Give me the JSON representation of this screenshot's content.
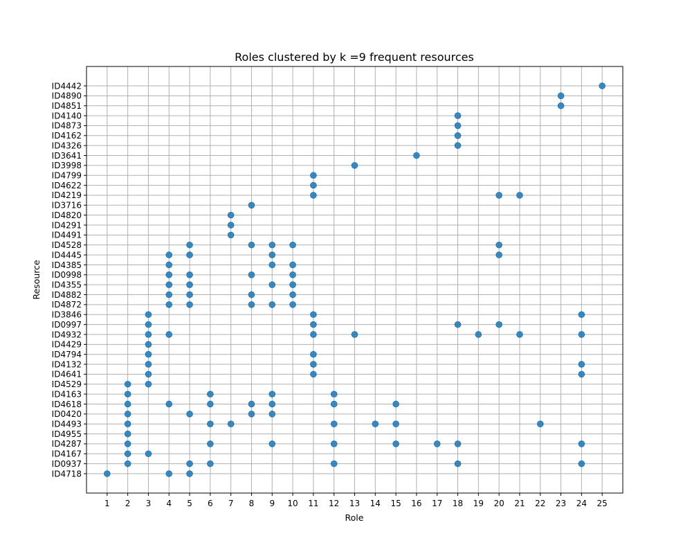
{
  "chart_data": {
    "type": "scatter",
    "title": "Roles clustered by k =9 frequent resources",
    "xlabel": "Role",
    "ylabel": "Resource",
    "grid": true,
    "x_ticks": [
      1,
      2,
      3,
      4,
      5,
      6,
      7,
      8,
      9,
      10,
      11,
      12,
      13,
      14,
      15,
      16,
      17,
      18,
      19,
      20,
      21,
      22,
      23,
      24,
      25
    ],
    "y_categories": [
      "ID4718",
      "ID0937",
      "ID4167",
      "ID4287",
      "ID4955",
      "ID4493",
      "ID0420",
      "ID4618",
      "ID4163",
      "ID4529",
      "ID4641",
      "ID4132",
      "ID4794",
      "ID4429",
      "ID4932",
      "ID0997",
      "ID3846",
      "ID4872",
      "ID4882",
      "ID4355",
      "ID0998",
      "ID4385",
      "ID4445",
      "ID4528",
      "ID4491",
      "ID4291",
      "ID4820",
      "ID3716",
      "ID4219",
      "ID4622",
      "ID4799",
      "ID3998",
      "ID3641",
      "ID4326",
      "ID4162",
      "ID4873",
      "ID4140",
      "ID4851",
      "ID4890",
      "ID4442"
    ],
    "points": [
      {
        "x": 1,
        "y": "ID4718"
      },
      {
        "x": 4,
        "y": "ID4718"
      },
      {
        "x": 5,
        "y": "ID4718"
      },
      {
        "x": 2,
        "y": "ID0937"
      },
      {
        "x": 5,
        "y": "ID0937"
      },
      {
        "x": 6,
        "y": "ID0937"
      },
      {
        "x": 12,
        "y": "ID0937"
      },
      {
        "x": 18,
        "y": "ID0937"
      },
      {
        "x": 24,
        "y": "ID0937"
      },
      {
        "x": 2,
        "y": "ID4167"
      },
      {
        "x": 3,
        "y": "ID4167"
      },
      {
        "x": 2,
        "y": "ID4287"
      },
      {
        "x": 6,
        "y": "ID4287"
      },
      {
        "x": 9,
        "y": "ID4287"
      },
      {
        "x": 12,
        "y": "ID4287"
      },
      {
        "x": 15,
        "y": "ID4287"
      },
      {
        "x": 17,
        "y": "ID4287"
      },
      {
        "x": 18,
        "y": "ID4287"
      },
      {
        "x": 24,
        "y": "ID4287"
      },
      {
        "x": 2,
        "y": "ID4955"
      },
      {
        "x": 2,
        "y": "ID4493"
      },
      {
        "x": 6,
        "y": "ID4493"
      },
      {
        "x": 7,
        "y": "ID4493"
      },
      {
        "x": 12,
        "y": "ID4493"
      },
      {
        "x": 14,
        "y": "ID4493"
      },
      {
        "x": 15,
        "y": "ID4493"
      },
      {
        "x": 22,
        "y": "ID4493"
      },
      {
        "x": 2,
        "y": "ID0420"
      },
      {
        "x": 5,
        "y": "ID0420"
      },
      {
        "x": 8,
        "y": "ID0420"
      },
      {
        "x": 9,
        "y": "ID0420"
      },
      {
        "x": 2,
        "y": "ID4618"
      },
      {
        "x": 4,
        "y": "ID4618"
      },
      {
        "x": 6,
        "y": "ID4618"
      },
      {
        "x": 8,
        "y": "ID4618"
      },
      {
        "x": 9,
        "y": "ID4618"
      },
      {
        "x": 12,
        "y": "ID4618"
      },
      {
        "x": 15,
        "y": "ID4618"
      },
      {
        "x": 2,
        "y": "ID4163"
      },
      {
        "x": 6,
        "y": "ID4163"
      },
      {
        "x": 9,
        "y": "ID4163"
      },
      {
        "x": 12,
        "y": "ID4163"
      },
      {
        "x": 2,
        "y": "ID4529"
      },
      {
        "x": 3,
        "y": "ID4529"
      },
      {
        "x": 3,
        "y": "ID4641"
      },
      {
        "x": 11,
        "y": "ID4641"
      },
      {
        "x": 24,
        "y": "ID4641"
      },
      {
        "x": 3,
        "y": "ID4132"
      },
      {
        "x": 11,
        "y": "ID4132"
      },
      {
        "x": 24,
        "y": "ID4132"
      },
      {
        "x": 3,
        "y": "ID4794"
      },
      {
        "x": 11,
        "y": "ID4794"
      },
      {
        "x": 3,
        "y": "ID4429"
      },
      {
        "x": 3,
        "y": "ID4932"
      },
      {
        "x": 4,
        "y": "ID4932"
      },
      {
        "x": 11,
        "y": "ID4932"
      },
      {
        "x": 13,
        "y": "ID4932"
      },
      {
        "x": 19,
        "y": "ID4932"
      },
      {
        "x": 21,
        "y": "ID4932"
      },
      {
        "x": 24,
        "y": "ID4932"
      },
      {
        "x": 3,
        "y": "ID0997"
      },
      {
        "x": 11,
        "y": "ID0997"
      },
      {
        "x": 18,
        "y": "ID0997"
      },
      {
        "x": 20,
        "y": "ID0997"
      },
      {
        "x": 3,
        "y": "ID3846"
      },
      {
        "x": 11,
        "y": "ID3846"
      },
      {
        "x": 24,
        "y": "ID3846"
      },
      {
        "x": 4,
        "y": "ID4872"
      },
      {
        "x": 5,
        "y": "ID4872"
      },
      {
        "x": 8,
        "y": "ID4872"
      },
      {
        "x": 9,
        "y": "ID4872"
      },
      {
        "x": 10,
        "y": "ID4872"
      },
      {
        "x": 4,
        "y": "ID4882"
      },
      {
        "x": 5,
        "y": "ID4882"
      },
      {
        "x": 8,
        "y": "ID4882"
      },
      {
        "x": 10,
        "y": "ID4882"
      },
      {
        "x": 4,
        "y": "ID4355"
      },
      {
        "x": 5,
        "y": "ID4355"
      },
      {
        "x": 9,
        "y": "ID4355"
      },
      {
        "x": 10,
        "y": "ID4355"
      },
      {
        "x": 4,
        "y": "ID0998"
      },
      {
        "x": 5,
        "y": "ID0998"
      },
      {
        "x": 8,
        "y": "ID0998"
      },
      {
        "x": 10,
        "y": "ID0998"
      },
      {
        "x": 4,
        "y": "ID4385"
      },
      {
        "x": 9,
        "y": "ID4385"
      },
      {
        "x": 10,
        "y": "ID4385"
      },
      {
        "x": 4,
        "y": "ID4445"
      },
      {
        "x": 5,
        "y": "ID4445"
      },
      {
        "x": 9,
        "y": "ID4445"
      },
      {
        "x": 20,
        "y": "ID4445"
      },
      {
        "x": 5,
        "y": "ID4528"
      },
      {
        "x": 8,
        "y": "ID4528"
      },
      {
        "x": 9,
        "y": "ID4528"
      },
      {
        "x": 10,
        "y": "ID4528"
      },
      {
        "x": 20,
        "y": "ID4528"
      },
      {
        "x": 7,
        "y": "ID4491"
      },
      {
        "x": 7,
        "y": "ID4291"
      },
      {
        "x": 7,
        "y": "ID4820"
      },
      {
        "x": 8,
        "y": "ID3716"
      },
      {
        "x": 11,
        "y": "ID4219"
      },
      {
        "x": 20,
        "y": "ID4219"
      },
      {
        "x": 21,
        "y": "ID4219"
      },
      {
        "x": 11,
        "y": "ID4622"
      },
      {
        "x": 11,
        "y": "ID4799"
      },
      {
        "x": 13,
        "y": "ID3998"
      },
      {
        "x": 16,
        "y": "ID3641"
      },
      {
        "x": 18,
        "y": "ID4326"
      },
      {
        "x": 18,
        "y": "ID4162"
      },
      {
        "x": 18,
        "y": "ID4873"
      },
      {
        "x": 18,
        "y": "ID4140"
      },
      {
        "x": 23,
        "y": "ID4851"
      },
      {
        "x": 23,
        "y": "ID4890"
      },
      {
        "x": 25,
        "y": "ID4442"
      }
    ],
    "colors": {
      "point": "#1f77b4",
      "grid": "#b0b0b0"
    }
  }
}
